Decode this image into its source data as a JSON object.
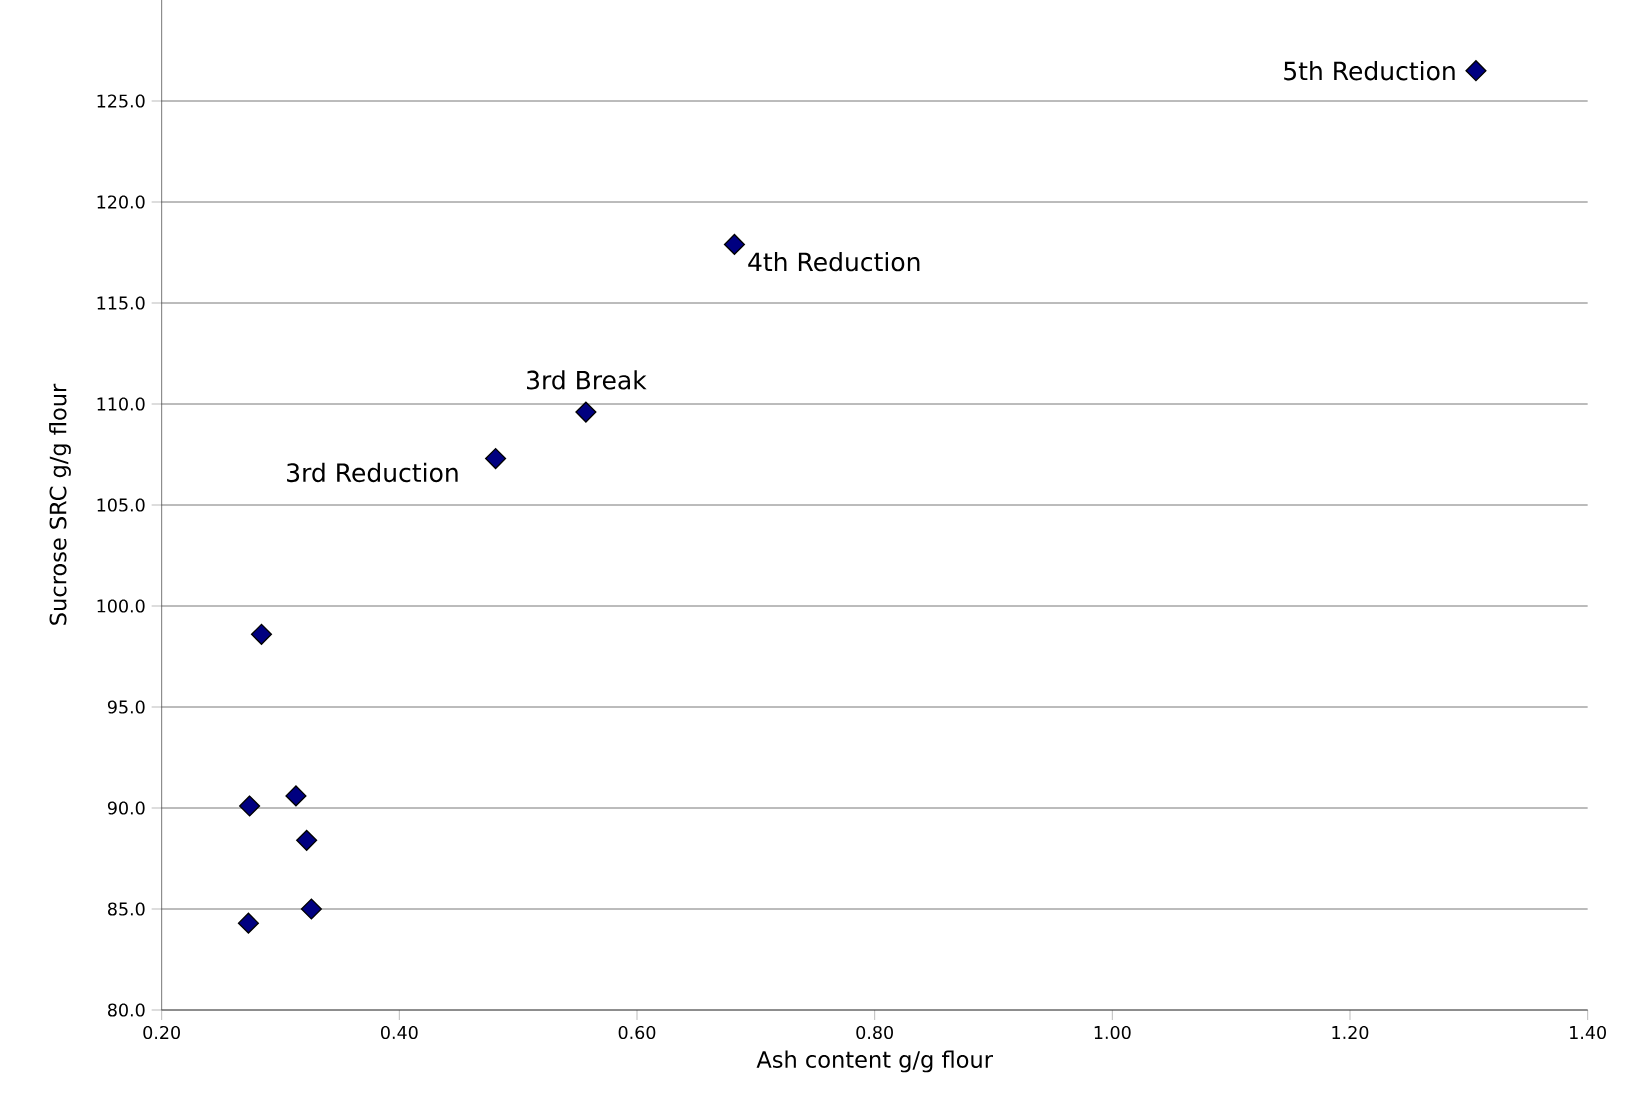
{
  "chart_data": {
    "type": "scatter",
    "xlabel": "Ash content g/g flour",
    "ylabel": "Sucrose SRC g/g flour",
    "x": [
      0.273,
      0.326,
      0.322,
      0.313,
      0.274,
      0.284,
      0.481,
      0.557,
      0.682,
      1.306
    ],
    "values": [
      84.3,
      85.0,
      88.4,
      90.6,
      90.1,
      98.6,
      107.3,
      109.6,
      117.9,
      126.5
    ],
    "color": "#000080",
    "marker": "diamond",
    "grid": "y",
    "xlim": [
      0.2,
      1.4
    ],
    "xticks": [
      {
        "value": 0.2,
        "label": "0.20"
      },
      {
        "value": 0.4,
        "label": "0.40"
      },
      {
        "value": 0.6,
        "label": "0.60"
      },
      {
        "value": 0.8,
        "label": "0.80"
      },
      {
        "value": 1.0,
        "label": "1.00"
      },
      {
        "value": 1.2,
        "label": "1.20"
      },
      {
        "value": 1.4,
        "label": "1.40"
      }
    ],
    "ylim": [
      80,
      130
    ],
    "yticks": [
      {
        "value": 80,
        "label": "80.0"
      },
      {
        "value": 85,
        "label": "85.0"
      },
      {
        "value": 90,
        "label": "90.0"
      },
      {
        "value": 95,
        "label": "95.0"
      },
      {
        "value": 100,
        "label": "100.0"
      },
      {
        "value": 105,
        "label": "105.0"
      },
      {
        "value": 110,
        "label": "110.0"
      },
      {
        "value": 115,
        "label": "115.0"
      },
      {
        "value": 120,
        "label": "120.0"
      },
      {
        "value": 125,
        "label": "125.0"
      }
    ],
    "annotations": [
      {
        "text": "3rd Reduction",
        "x": 0.481,
        "y": 107.3
      },
      {
        "text": "3rd Break",
        "x": 0.557,
        "y": 109.6
      },
      {
        "text": "4th Reduction",
        "x": 0.682,
        "y": 117.9
      },
      {
        "text": "5th Reduction",
        "x": 1.306,
        "y": 126.5
      }
    ]
  }
}
